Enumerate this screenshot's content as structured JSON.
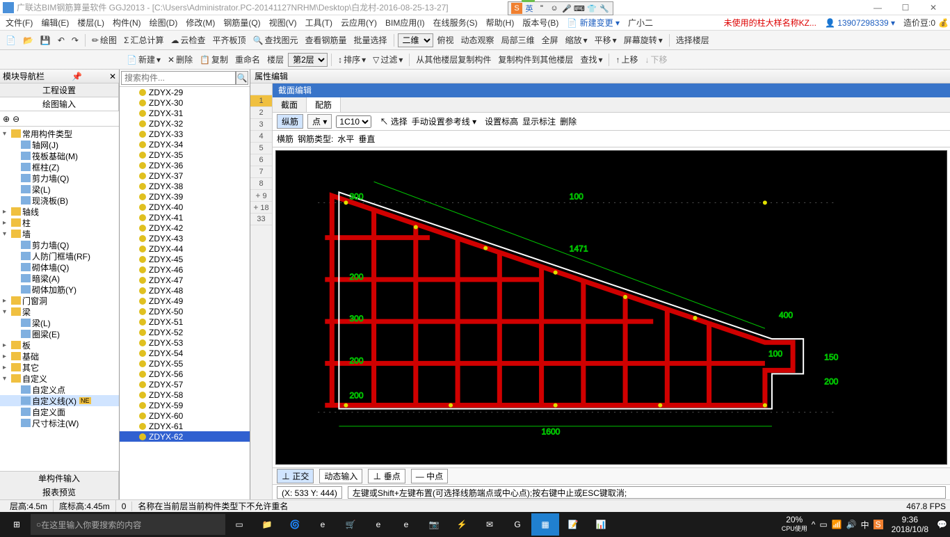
{
  "title": "广联达BIM钢筋算量软件 GGJ2013 - [C:\\Users\\Administrator.PC-20141127NRHM\\Desktop\\白龙村-2016-08-25-13-27]",
  "menus": [
    "文件(F)",
    "编辑(E)",
    "楼层(L)",
    "构件(N)",
    "绘图(D)",
    "修改(M)",
    "钢筋量(Q)",
    "视图(V)",
    "工具(T)",
    "云应用(Y)",
    "BIM应用(I)",
    "在线服务(S)",
    "帮助(H)",
    "版本号(B)"
  ],
  "newChange": "新建变更",
  "userLabel": "广小二",
  "warning": "未使用的柱大样名称KZ...",
  "phone": "13907298339",
  "coins": "造价豆:0",
  "toolbar1": {
    "draw": "绘图",
    "sumCalc": "汇总计算",
    "cloudCheck": "云检查",
    "flatTop": "平齐板顶",
    "findGraph": "查找图元",
    "viewRebar": "查看钢筋量",
    "batchSel": "批量选择",
    "view2d": "二维",
    "topView": "俯视",
    "dynView": "动态观察",
    "partial3d": "局部三维",
    "fullscreen": "全屏",
    "zoom": "缩放",
    "pan": "平移",
    "screenRot": "屏幕旋转",
    "selFloor": "选择楼层"
  },
  "toolbar2": {
    "new": "新建",
    "del": "删除",
    "copy": "复制",
    "rename": "重命名",
    "floor": "楼层",
    "floorVal": "第2层",
    "sort": "排序",
    "filter": "过滤",
    "copyFrom": "从其他楼层复制构件",
    "copyTo": "复制构件到其他楼层",
    "find": "查找",
    "up": "上移",
    "down": "下移"
  },
  "leftPanel": {
    "title": "模块导航栏",
    "tab1": "工程设置",
    "tab2": "绘图输入",
    "tree": [
      {
        "t": "常用构件类型",
        "l": 0,
        "e": "-",
        "f": 1
      },
      {
        "t": "轴网(J)",
        "l": 1,
        "f": 0
      },
      {
        "t": "筏板基础(M)",
        "l": 1,
        "f": 0
      },
      {
        "t": "框柱(Z)",
        "l": 1,
        "f": 0
      },
      {
        "t": "剪力墙(Q)",
        "l": 1,
        "f": 0
      },
      {
        "t": "梁(L)",
        "l": 1,
        "f": 0
      },
      {
        "t": "现浇板(B)",
        "l": 1,
        "f": 0
      },
      {
        "t": "轴线",
        "l": 0,
        "e": "+",
        "f": 1
      },
      {
        "t": "柱",
        "l": 0,
        "e": "+",
        "f": 1
      },
      {
        "t": "墙",
        "l": 0,
        "e": "-",
        "f": 1
      },
      {
        "t": "剪力墙(Q)",
        "l": 1,
        "f": 0
      },
      {
        "t": "人防门框墙(RF)",
        "l": 1,
        "f": 0
      },
      {
        "t": "砌体墙(Q)",
        "l": 1,
        "f": 0
      },
      {
        "t": "暗梁(A)",
        "l": 1,
        "f": 0
      },
      {
        "t": "砌体加筋(Y)",
        "l": 1,
        "f": 0
      },
      {
        "t": "门窗洞",
        "l": 0,
        "e": "+",
        "f": 1
      },
      {
        "t": "梁",
        "l": 0,
        "e": "-",
        "f": 1
      },
      {
        "t": "梁(L)",
        "l": 1,
        "f": 0
      },
      {
        "t": "圈梁(E)",
        "l": 1,
        "f": 0
      },
      {
        "t": "板",
        "l": 0,
        "e": "+",
        "f": 1
      },
      {
        "t": "基础",
        "l": 0,
        "e": "+",
        "f": 1
      },
      {
        "t": "其它",
        "l": 0,
        "e": "+",
        "f": 1
      },
      {
        "t": "自定义",
        "l": 0,
        "e": "-",
        "f": 1
      },
      {
        "t": "自定义点",
        "l": 1,
        "f": 0
      },
      {
        "t": "自定义线(X)",
        "l": 1,
        "f": 0,
        "sel": 1,
        "new": 1
      },
      {
        "t": "自定义面",
        "l": 1,
        "f": 0
      },
      {
        "t": "尺寸标注(W)",
        "l": 1,
        "f": 0
      }
    ],
    "bottomTabs": [
      "单构件输入",
      "报表预览"
    ]
  },
  "searchPlaceholder": "搜索构件...",
  "compPrefix": "ZDYX-",
  "compRange": [
    29,
    62
  ],
  "compSelected": 62,
  "propHeader": "属性编辑",
  "rowNums": [
    "",
    "1",
    "2",
    "3",
    "4",
    "5",
    "6",
    "7",
    "8",
    "9",
    "18",
    "33"
  ],
  "section": {
    "title": "截面编辑",
    "tabs": [
      "截面",
      "配筋"
    ],
    "activeTab": 1,
    "bar1": {
      "zong": "纵筋",
      "dian": "点",
      "size": "1C10",
      "select": "选择",
      "manual": "手动设置参考线",
      "elev": "设置标高",
      "showDim": "显示标注",
      "del": "删除"
    },
    "bar2": {
      "heng": "横筋",
      "type": "钢筋类型:",
      "hori": "水平",
      "vert": "垂直"
    },
    "dims": {
      "d100": "100",
      "d200": "200",
      "d300": "300",
      "d400": "400",
      "d1471": "1471",
      "d1600": "1600",
      "d150": "150"
    }
  },
  "bottomStatus": {
    "ortho": "正交",
    "dynInput": "动态输入",
    "vpoint": "垂点",
    "mpoint": "中点"
  },
  "coord": "(X: 533 Y: 444)",
  "hint": "左键或Shift+左键布置(可选择线筋端点或中心点);按右键中止或ESC键取消;",
  "statusBar": {
    "floorH": "层高:4.5m",
    "bottomH": "底标高:4.45m",
    "zero": "0",
    "msg": "名称在当前层当前构件类型下不允许重名",
    "fps": "467.8 FPS"
  },
  "taskbar": {
    "search": "在这里输入你要搜索的内容",
    "cpu": "20%",
    "cpuLabel": "CPU使用",
    "time": "9:36",
    "date": "2018/10/8"
  },
  "ime": {
    "badge": "76",
    "lang": "英"
  },
  "colors": {
    "red": "#d00000",
    "white": "#ffffff",
    "green": "#00a000",
    "yellow": "#e0e000",
    "cyan": "#00e0e0"
  }
}
